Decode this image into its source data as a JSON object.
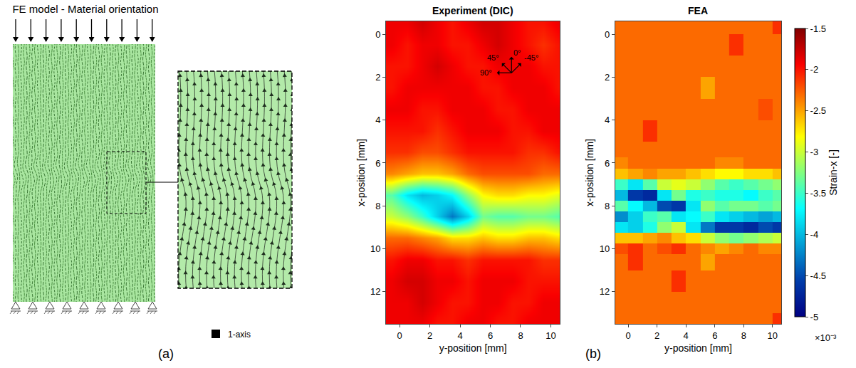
{
  "panel_a": {
    "label": "(a)",
    "title": "FE model - Material orientation",
    "legend_text": "1-axis"
  },
  "panel_b_label": "(b)",
  "colorbar": {
    "title": "Strain-x [-]",
    "range": [
      -5,
      -1.5
    ],
    "ticks": [
      -1.5,
      -2,
      -2.5,
      -3,
      -3.5,
      -4,
      -4.5,
      -5
    ],
    "multiplier": "×10⁻³",
    "color": "jet"
  },
  "chart_data": [
    {
      "type": "heatmap",
      "title": "Experiment (DIC)",
      "x_label": "y-position [mm]",
      "y_label": "x-position [mm]",
      "xlim": [
        -0.9,
        10.6
      ],
      "ylim": [
        13.5,
        -0.6
      ],
      "xticks": [
        0,
        2,
        4,
        6,
        8,
        10
      ],
      "yticks": [
        0,
        2,
        4,
        6,
        8,
        10,
        12
      ],
      "annotations": [
        "45°",
        "0°",
        "-45°",
        "90°"
      ],
      "x": [
        -0.5,
        0.5,
        1.5,
        2.5,
        3.5,
        4.5,
        5.5,
        6.5,
        7.5,
        8.5,
        9.5,
        10.5
      ],
      "y": [
        -0.5,
        0.5,
        1.5,
        2.5,
        3.5,
        4.5,
        5.5,
        6.5,
        7.5,
        8.5,
        9.5,
        10.5,
        11.5,
        12.5,
        13.5
      ],
      "cells": [
        [
          -1.9,
          -1.9,
          -1.8,
          -1.9,
          -2.0,
          -1.9,
          -1.8,
          -1.8,
          -1.9,
          -2.0,
          -2.0,
          -1.9
        ],
        [
          -1.9,
          -2.0,
          -1.9,
          -1.9,
          -2.0,
          -2.0,
          -1.9,
          -1.8,
          -1.9,
          -2.0,
          -2.1,
          -2.0
        ],
        [
          -2.0,
          -2.0,
          -1.9,
          -1.8,
          -1.9,
          -2.0,
          -2.0,
          -1.9,
          -1.9,
          -1.9,
          -2.0,
          -2.0
        ],
        [
          -2.0,
          -1.9,
          -1.9,
          -1.9,
          -1.9,
          -1.9,
          -2.0,
          -2.0,
          -1.9,
          -1.9,
          -1.9,
          -2.0
        ],
        [
          -1.9,
          -1.9,
          -2.0,
          -2.0,
          -1.9,
          -1.9,
          -1.9,
          -2.0,
          -2.0,
          -1.9,
          -1.9,
          -1.9
        ],
        [
          -2.0,
          -2.0,
          -2.0,
          -2.1,
          -2.0,
          -1.9,
          -1.9,
          -1.9,
          -2.0,
          -2.0,
          -1.9,
          -1.9
        ],
        [
          -2.1,
          -2.1,
          -2.2,
          -2.2,
          -2.1,
          -2.0,
          -2.0,
          -2.0,
          -2.0,
          -2.1,
          -2.1,
          -2.0
        ],
        [
          -2.4,
          -2.5,
          -2.6,
          -2.6,
          -2.5,
          -2.3,
          -2.2,
          -2.2,
          -2.2,
          -2.2,
          -2.3,
          -2.3
        ],
        [
          -3.4,
          -3.8,
          -4.0,
          -3.9,
          -3.7,
          -3.2,
          -2.8,
          -2.7,
          -2.7,
          -2.8,
          -2.8,
          -2.9
        ],
        [
          -3.0,
          -3.2,
          -3.5,
          -3.9,
          -4.3,
          -3.9,
          -3.3,
          -3.4,
          -3.4,
          -3.3,
          -3.3,
          -3.4
        ],
        [
          -2.3,
          -2.3,
          -2.4,
          -2.5,
          -2.7,
          -2.7,
          -2.6,
          -2.7,
          -2.7,
          -2.6,
          -2.6,
          -2.7
        ],
        [
          -2.0,
          -1.9,
          -1.9,
          -2.0,
          -2.0,
          -2.1,
          -2.0,
          -2.0,
          -2.0,
          -2.0,
          -2.1,
          -2.1
        ],
        [
          -1.9,
          -1.8,
          -1.8,
          -1.9,
          -1.9,
          -2.0,
          -1.9,
          -1.9,
          -1.9,
          -2.0,
          -2.0,
          -2.0
        ],
        [
          -1.9,
          -1.9,
          -1.8,
          -1.9,
          -2.0,
          -2.0,
          -1.9,
          -1.9,
          -2.0,
          -2.0,
          -1.9,
          -1.9
        ],
        [
          -1.9,
          -1.9,
          -1.9,
          -2.0,
          -2.0,
          -1.9,
          -1.9,
          -2.0,
          -2.0,
          -1.9,
          -1.9,
          -1.9
        ]
      ]
    },
    {
      "type": "heatmap",
      "title": "FEA",
      "x_label": "y-position [mm]",
      "y_label": "x-position [mm]",
      "xlim": [
        -0.9,
        10.6
      ],
      "ylim": [
        13.5,
        -0.6
      ],
      "xticks": [
        0,
        2,
        4,
        6,
        8,
        10
      ],
      "yticks": [
        0,
        2,
        4,
        6,
        8,
        10,
        12
      ],
      "x": [
        -0.5,
        0.5,
        1.5,
        2.5,
        3.5,
        4.5,
        5.5,
        6.5,
        7.5,
        8.5,
        9.5,
        10.5
      ],
      "y": [
        -0.5,
        0.5,
        1.5,
        2.5,
        3.5,
        4.5,
        5.5,
        6.0,
        6.5,
        7.0,
        7.5,
        8.0,
        8.5,
        9.0,
        9.5,
        10.0,
        10.5,
        11.5,
        12.5,
        13.5
      ],
      "cells": [
        [
          -2.3,
          -2.3,
          -2.3,
          -2.3,
          -2.3,
          -2.3,
          -2.3,
          -2.3,
          -2.3,
          -2.3,
          -2.3,
          -2.1
        ],
        [
          -2.3,
          -2.3,
          -2.3,
          -2.3,
          -2.3,
          -2.3,
          -2.3,
          -2.3,
          -2.1,
          -2.3,
          -2.3,
          -2.3
        ],
        [
          -2.3,
          -2.3,
          -2.3,
          -2.3,
          -2.3,
          -2.3,
          -2.3,
          -2.3,
          -2.3,
          -2.3,
          -2.3,
          -2.3
        ],
        [
          -2.3,
          -2.3,
          -2.3,
          -2.3,
          -2.3,
          -2.3,
          -2.5,
          -2.3,
          -2.3,
          -2.3,
          -2.3,
          -2.3
        ],
        [
          -2.3,
          -2.3,
          -2.3,
          -2.3,
          -2.3,
          -2.3,
          -2.3,
          -2.3,
          -2.3,
          -2.3,
          -2.2,
          -2.3
        ],
        [
          -2.3,
          -2.3,
          -2.1,
          -2.3,
          -2.3,
          -2.3,
          -2.3,
          -2.3,
          -2.3,
          -2.3,
          -2.3,
          -2.3
        ],
        [
          -2.3,
          -2.3,
          -2.3,
          -2.3,
          -2.3,
          -2.3,
          -2.3,
          -2.3,
          -2.3,
          -2.3,
          -2.3,
          -2.3
        ],
        [
          -2.4,
          -2.3,
          -2.3,
          -2.3,
          -2.3,
          -2.3,
          -2.3,
          -2.4,
          -2.4,
          -2.3,
          -2.3,
          -2.3
        ],
        [
          -2.6,
          -2.5,
          -2.4,
          -2.5,
          -2.5,
          -2.6,
          -2.7,
          -2.8,
          -2.8,
          -2.7,
          -2.7,
          -2.6
        ],
        [
          -3.5,
          -3.8,
          -3.4,
          -3.0,
          -2.9,
          -3.0,
          -3.2,
          -3.4,
          -3.5,
          -3.4,
          -3.3,
          -3.2
        ],
        [
          -4.0,
          -4.6,
          -4.7,
          -3.8,
          -3.3,
          -3.6,
          -3.5,
          -3.6,
          -3.6,
          -3.7,
          -3.5,
          -3.4
        ],
        [
          -3.4,
          -3.7,
          -4.0,
          -4.5,
          -4.6,
          -3.8,
          -3.2,
          -3.4,
          -3.3,
          -3.3,
          -3.4,
          -3.3
        ],
        [
          -4.2,
          -3.9,
          -3.5,
          -3.4,
          -3.8,
          -3.7,
          -3.5,
          -3.8,
          -3.9,
          -4.0,
          -4.1,
          -4.0
        ],
        [
          -3.8,
          -3.9,
          -3.6,
          -3.2,
          -3.0,
          -3.8,
          -4.3,
          -4.6,
          -4.6,
          -4.7,
          -4.5,
          -4.6
        ],
        [
          -2.6,
          -2.6,
          -2.5,
          -2.4,
          -2.6,
          -2.7,
          -3.0,
          -3.2,
          -3.3,
          -3.2,
          -3.1,
          -3.0
        ],
        [
          -2.2,
          -2.1,
          -2.3,
          -2.2,
          -2.1,
          -2.3,
          -2.4,
          -2.5,
          -2.4,
          -2.3,
          -2.4,
          -2.4
        ],
        [
          -2.3,
          -2.1,
          -2.3,
          -2.3,
          -2.3,
          -2.3,
          -2.5,
          -2.3,
          -2.3,
          -2.3,
          -2.3,
          -2.3
        ],
        [
          -2.3,
          -2.3,
          -2.3,
          -2.3,
          -2.1,
          -2.3,
          -2.3,
          -2.3,
          -2.3,
          -2.3,
          -2.3,
          -2.3
        ],
        [
          -2.3,
          -2.3,
          -2.3,
          -2.3,
          -2.3,
          -2.3,
          -2.3,
          -2.3,
          -2.3,
          -2.3,
          -2.3,
          -2.3
        ],
        [
          -2.3,
          -2.3,
          -2.3,
          -2.3,
          -2.3,
          -2.3,
          -2.3,
          -2.3,
          -2.3,
          -2.3,
          -2.3,
          -2.1
        ]
      ]
    }
  ]
}
